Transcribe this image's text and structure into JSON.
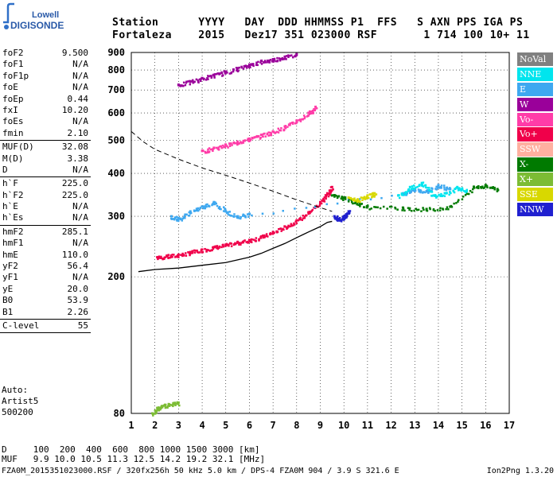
{
  "logo": {
    "line1": "Lowell",
    "line2": "DIGISONDE"
  },
  "header": {
    "labels": [
      "Station",
      "YYYY",
      "DAY",
      "DDD",
      "HHMMSS",
      "P1",
      "FFS",
      "S",
      "AXN",
      "PPS",
      "IGA",
      "PS"
    ],
    "values": [
      "Fortaleza",
      "2015",
      "Dez17",
      "351",
      "023000",
      "RSF",
      "",
      "1",
      "714",
      "100",
      "10+",
      "11"
    ]
  },
  "params": [
    {
      "group": [
        {
          "label": "foF2",
          "value": "9.500"
        },
        {
          "label": "foF1",
          "value": "N/A"
        },
        {
          "label": "foF1p",
          "value": "N/A"
        },
        {
          "label": "foE",
          "value": "N/A"
        },
        {
          "label": "foEp",
          "value": "0.44"
        },
        {
          "label": "fxI",
          "value": "10.20"
        },
        {
          "label": "foEs",
          "value": "N/A"
        },
        {
          "label": "fmin",
          "value": "2.10"
        }
      ]
    },
    {
      "group": [
        {
          "label": "MUF(D)",
          "value": "32.08"
        },
        {
          "label": "M(D)",
          "value": "3.38"
        },
        {
          "label": "D",
          "value": "N/A"
        }
      ]
    },
    {
      "group": [
        {
          "label": "h`F",
          "value": "225.0"
        },
        {
          "label": "h`F2",
          "value": "225.0"
        },
        {
          "label": "h`E",
          "value": "N/A"
        },
        {
          "label": "h`Es",
          "value": "N/A"
        }
      ]
    },
    {
      "group": [
        {
          "label": "hmF2",
          "value": "285.1"
        },
        {
          "label": "hmF1",
          "value": "N/A"
        },
        {
          "label": "hmE",
          "value": "110.0"
        },
        {
          "label": "yF2",
          "value": "56.4"
        },
        {
          "label": "yF1",
          "value": "N/A"
        },
        {
          "label": "yE",
          "value": "20.0"
        },
        {
          "label": "B0",
          "value": "53.9"
        },
        {
          "label": "B1",
          "value": "2.26"
        }
      ]
    },
    {
      "group": [
        {
          "label": "C-level",
          "value": "55"
        }
      ]
    }
  ],
  "auto": {
    "line1": "Auto:",
    "line2": "Artist5",
    "line3": "500200"
  },
  "legend": [
    {
      "label": "NoVal",
      "color": "#808080"
    },
    {
      "label": "NNE",
      "color": "#00e5ee"
    },
    {
      "label": "E",
      "color": "#3ea8f0"
    },
    {
      "label": "W",
      "color": "#9a009a"
    },
    {
      "label": "Vo-",
      "color": "#ff3ca8"
    },
    {
      "label": "Vo+",
      "color": "#f0004a"
    },
    {
      "label": "SSW",
      "color": "#ffb0a0"
    },
    {
      "label": "X-",
      "color": "#007a00"
    },
    {
      "label": "X+",
      "color": "#7cbc34"
    },
    {
      "label": "SSE",
      "color": "#d8d800"
    },
    {
      "label": "NNW",
      "color": "#2020d0"
    }
  ],
  "chart_data": {
    "type": "scatter",
    "title": "",
    "xlabel": "",
    "ylabel": "",
    "xlim": [
      1,
      17
    ],
    "ylim": [
      80,
      900
    ],
    "x_ticks": [
      1,
      2,
      3,
      4,
      5,
      6,
      7,
      8,
      9,
      10,
      11,
      12,
      13,
      14,
      15,
      16,
      17
    ],
    "y_ticks": [
      80,
      200,
      300,
      400,
      500,
      600,
      700,
      800,
      900
    ],
    "y_scale": "log",
    "grid": "dotted",
    "series": [
      {
        "color": "#f0004a",
        "points": [
          [
            2.1,
            228
          ],
          [
            2.5,
            230
          ],
          [
            3.0,
            232
          ],
          [
            3.5,
            236
          ],
          [
            4.0,
            240
          ],
          [
            4.5,
            244
          ],
          [
            5.0,
            248
          ],
          [
            5.5,
            252
          ],
          [
            6.0,
            256
          ],
          [
            6.5,
            262
          ],
          [
            7.0,
            270
          ],
          [
            7.5,
            280
          ],
          [
            8.0,
            292
          ],
          [
            8.5,
            308
          ],
          [
            9.0,
            330
          ],
          [
            9.3,
            350
          ],
          [
            9.5,
            365
          ]
        ]
      },
      {
        "color": "#ff3ca8",
        "points": [
          [
            4.0,
            465
          ],
          [
            4.5,
            475
          ],
          [
            5.0,
            485
          ],
          [
            5.5,
            495
          ],
          [
            6.0,
            505
          ],
          [
            6.5,
            518
          ],
          [
            7.0,
            530
          ],
          [
            7.5,
            548
          ],
          [
            8.0,
            570
          ],
          [
            8.5,
            600
          ],
          [
            8.8,
            625
          ]
        ]
      },
      {
        "color": "#9a009a",
        "points": [
          [
            3.0,
            725
          ],
          [
            3.5,
            742
          ],
          [
            4.0,
            758
          ],
          [
            4.5,
            775
          ],
          [
            5.0,
            792
          ],
          [
            5.5,
            810
          ],
          [
            6.0,
            830
          ],
          [
            6.5,
            850
          ],
          [
            7.0,
            860
          ],
          [
            7.5,
            875
          ],
          [
            8.0,
            890
          ]
        ]
      },
      {
        "color": "#3ea8f0",
        "points": [
          [
            2.7,
            300
          ],
          [
            3.0,
            295
          ],
          [
            3.5,
            310
          ],
          [
            4.0,
            320
          ],
          [
            4.5,
            330
          ],
          [
            5.0,
            310
          ],
          [
            5.5,
            300
          ],
          [
            6.0,
            305
          ],
          [
            12.5,
            350
          ],
          [
            13.0,
            360
          ],
          [
            13.5,
            355
          ],
          [
            14.0,
            370
          ],
          [
            14.5,
            360
          ]
        ]
      },
      {
        "color": "#00e5ee",
        "points": [
          [
            12.3,
            345
          ],
          [
            12.8,
            365
          ],
          [
            13.3,
            375
          ],
          [
            13.8,
            345
          ],
          [
            14.3,
            350
          ],
          [
            14.8,
            365
          ],
          [
            15.2,
            355
          ]
        ]
      },
      {
        "color": "#007a00",
        "points": [
          [
            9.5,
            345
          ],
          [
            10.0,
            340
          ],
          [
            10.5,
            330
          ],
          [
            11.0,
            320
          ],
          [
            12.5,
            318
          ],
          [
            13.5,
            315
          ],
          [
            14.5,
            320
          ],
          [
            15.5,
            365
          ],
          [
            16.0,
            370
          ],
          [
            16.5,
            360
          ]
        ]
      },
      {
        "color": "#2020d0",
        "points": [
          [
            9.6,
            300
          ],
          [
            9.8,
            295
          ],
          [
            10.0,
            300
          ],
          [
            10.2,
            310
          ]
        ]
      },
      {
        "color": "#d8d800",
        "points": [
          [
            10.2,
            340
          ],
          [
            10.6,
            335
          ],
          [
            11.0,
            345
          ],
          [
            11.3,
            350
          ]
        ]
      },
      {
        "color": "#7cbc34",
        "points": [
          [
            1.9,
            80
          ],
          [
            2.1,
            83
          ],
          [
            2.3,
            84
          ],
          [
            2.6,
            85
          ],
          [
            3.0,
            86
          ]
        ]
      }
    ],
    "profile": [
      [
        1.3,
        207
      ],
      [
        2.0,
        210
      ],
      [
        3.0,
        212
      ],
      [
        4.0,
        216
      ],
      [
        5.0,
        220
      ],
      [
        6.0,
        228
      ],
      [
        6.5,
        234
      ],
      [
        7.0,
        242
      ],
      [
        7.5,
        250
      ],
      [
        8.0,
        260
      ],
      [
        8.5,
        270
      ],
      [
        9.0,
        280
      ],
      [
        9.3,
        288
      ],
      [
        9.5,
        290
      ]
    ],
    "x_trace": [
      [
        1.0,
        530
      ],
      [
        1.5,
        495
      ],
      [
        2.0,
        470
      ],
      [
        3.0,
        440
      ],
      [
        4.0,
        415
      ],
      [
        5.0,
        395
      ],
      [
        6.0,
        375
      ],
      [
        7.0,
        355
      ],
      [
        8.0,
        335
      ],
      [
        9.0,
        318
      ],
      [
        9.5,
        310
      ]
    ]
  },
  "footer": {
    "line1_label": "D",
    "line1_values": "100  200  400  600  800 1000 1500 3000 [km]",
    "line2_label": "MUF",
    "line2_values": "9.9 10.0 10.5 11.3 12.5 14.2 19.2 32.1 [MHz]",
    "line3": "FZA0M_2015351023000.RSF / 320fx256h 50 kHz 5.0 km / DPS-4 FZA0M 904 / 3.9 S 321.6 E",
    "version": "Ion2Png 1.3.20"
  }
}
